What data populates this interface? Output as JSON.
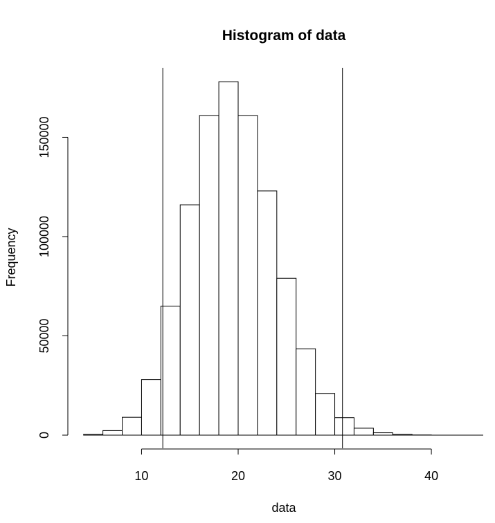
{
  "chart_data": {
    "type": "bar",
    "title": "Histogram of data",
    "xlabel": "data",
    "ylabel": "Frequency",
    "bin_width": 2,
    "bins": [
      {
        "start": 4,
        "end": 6,
        "count": 400
      },
      {
        "start": 6,
        "end": 8,
        "count": 2300
      },
      {
        "start": 8,
        "end": 10,
        "count": 9000
      },
      {
        "start": 10,
        "end": 12,
        "count": 28000
      },
      {
        "start": 12,
        "end": 14,
        "count": 65000
      },
      {
        "start": 14,
        "end": 16,
        "count": 116000
      },
      {
        "start": 16,
        "end": 18,
        "count": 161000
      },
      {
        "start": 18,
        "end": 20,
        "count": 178000
      },
      {
        "start": 20,
        "end": 22,
        "count": 161000
      },
      {
        "start": 22,
        "end": 24,
        "count": 123000
      },
      {
        "start": 24,
        "end": 26,
        "count": 79000
      },
      {
        "start": 26,
        "end": 28,
        "count": 43500
      },
      {
        "start": 28,
        "end": 30,
        "count": 21000
      },
      {
        "start": 30,
        "end": 32,
        "count": 8800
      },
      {
        "start": 32,
        "end": 34,
        "count": 3500
      },
      {
        "start": 34,
        "end": 36,
        "count": 1200
      },
      {
        "start": 36,
        "end": 38,
        "count": 400
      },
      {
        "start": 38,
        "end": 40,
        "count": 100
      }
    ],
    "vertical_lines": [
      12.2,
      30.8
    ],
    "xlim": [
      2.3,
      46.3
    ],
    "ylim": [
      0,
      185000
    ],
    "x_ticks": [
      10,
      20,
      30,
      40
    ],
    "x_tick_labels": [
      "10",
      "20",
      "30",
      "40"
    ],
    "y_ticks": [
      0,
      50000,
      100000,
      150000
    ],
    "y_tick_labels": [
      "0",
      "50000",
      "100000",
      "150000"
    ],
    "grid": false,
    "legend": "none",
    "colors": {
      "bar_fill": "#ffffff",
      "stroke": "#000000",
      "background": "#ffffff"
    }
  }
}
